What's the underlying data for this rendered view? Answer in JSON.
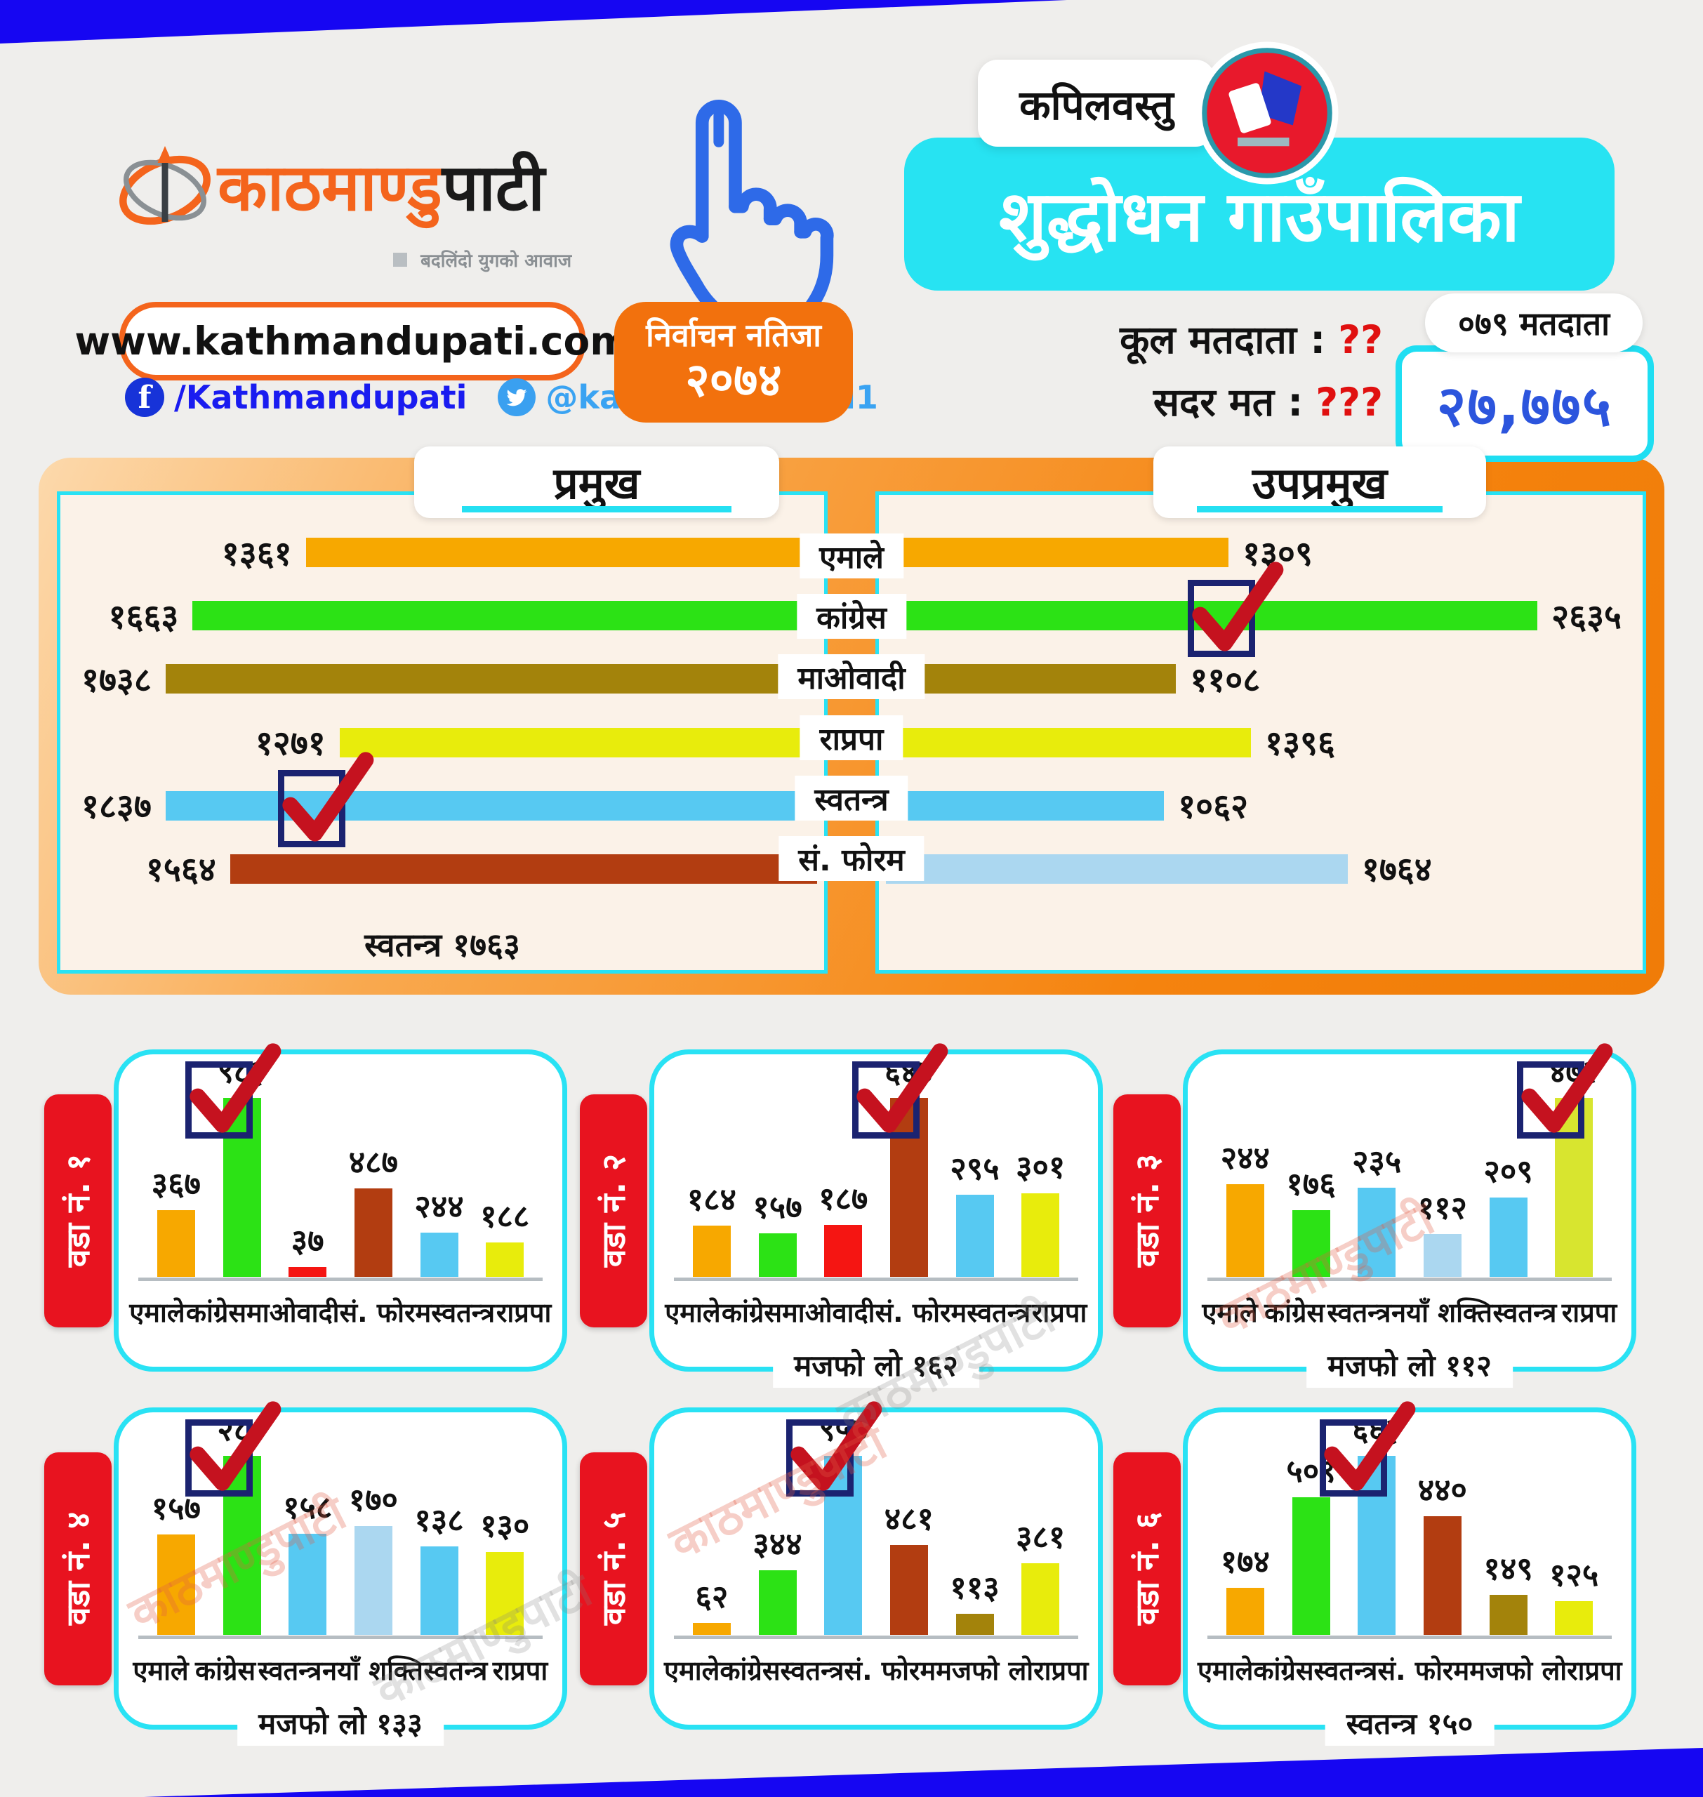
{
  "header": {
    "brand_orange": "काठमाण्डु",
    "brand_black": "पाटी",
    "tagline": "बदलिंदो युगको आवाज",
    "website": "www.kathmandupati.com",
    "facebook_icon": "f",
    "facebook": "/Kathmandupati",
    "twitter": "@kathmandupati1",
    "election_line1": "निर्वाचन नतिजा",
    "election_line2": "२०७४",
    "district": "कपिलवस्तु",
    "municipality": "शुद्धोधन गाउँपालिका",
    "total_voters_label": "कूल मतदाता :",
    "total_voters_value": "??",
    "valid_votes_label": "सदर मत :",
    "valid_votes_value": "???",
    "voters_bubble": "०७९ मतदाता",
    "voters_total": "२७,७७५"
  },
  "watermark": "काठमाण्डुपाटी",
  "colors": {
    "top_bar": "#1606f2",
    "cyan": "#27e3f2",
    "orange_brand": "#f4641c",
    "orange_frame": "#f5830e",
    "red_tab": "#e8131f",
    "check_navy": "#1b2370",
    "check_red": "#c5121f",
    "number_blue": "#2c55dd"
  },
  "chart_data": [
    {
      "id": "chief",
      "type": "bar",
      "orientation": "horizontal",
      "title": "प्रमुख",
      "categories": [
        "एमाले",
        "कांग्रेस",
        "माओवादी",
        "राप्रपा",
        "स्वतन्त्र",
        "सं. फोरम"
      ],
      "values": [
        1361,
        1663,
        1738,
        1271,
        1837,
        1564
      ],
      "value_labels": [
        "१३६१",
        "१६६३",
        "१७३८",
        "१२७१",
        "१८३७",
        "१५६४"
      ],
      "colors": [
        "#f7a800",
        "#2ce215",
        "#a3830b",
        "#e8ec0c",
        "#57c9f2",
        "#b23d11"
      ],
      "winner_index": 4,
      "note": "स्वतन्त्र १७६३"
    },
    {
      "id": "deputy",
      "type": "bar",
      "orientation": "horizontal",
      "title": "उपप्रमुख",
      "categories": [
        "एमाले",
        "कांग्रेस",
        "माओवादी",
        "राप्रपा",
        "स्वतन्त्र",
        "सं. फोरम"
      ],
      "values": [
        1309,
        2635,
        1108,
        1396,
        1062,
        1764
      ],
      "value_labels": [
        "१३०९",
        "२६३५",
        "११०८",
        "१३९६",
        "१०६२",
        "१७६४"
      ],
      "colors": [
        "#f7a800",
        "#2ce215",
        "#a3830b",
        "#e8ec0c",
        "#57c9f2",
        "#abd7f0"
      ],
      "winner_index": 1,
      "note": null
    },
    {
      "id": "ward1",
      "type": "bar",
      "orientation": "vertical",
      "tab": "वडा नं. १",
      "categories": [
        "एमाले",
        "कांग्रेस",
        "माओवादी",
        "सं. फोरम",
        "स्वतन्त्र",
        "राप्रपा"
      ],
      "values": [
        367,
        983,
        37,
        487,
        244,
        188
      ],
      "value_labels": [
        "३६७",
        "९८३",
        "३७",
        "४८७",
        "२४४",
        "१८८"
      ],
      "colors": [
        "#f7a800",
        "#2ce215",
        "#f51512",
        "#b23d11",
        "#57c9f2",
        "#e8ec0c"
      ],
      "winner_index": 1,
      "note": null
    },
    {
      "id": "ward2",
      "type": "bar",
      "orientation": "vertical",
      "tab": "वडा नं. २",
      "categories": [
        "एमाले",
        "कांग्रेस",
        "माओवादी",
        "सं. फोरम",
        "स्वतन्त्र",
        "राप्रपा"
      ],
      "values": [
        184,
        157,
        187,
        644,
        295,
        301
      ],
      "value_labels": [
        "१८४",
        "१५७",
        "१८७",
        "६४४",
        "२९५",
        "३०१"
      ],
      "colors": [
        "#f7a800",
        "#2ce215",
        "#f51512",
        "#b23d11",
        "#57c9f2",
        "#e8ec0c"
      ],
      "winner_index": 3,
      "note": "मजफो लो १६२"
    },
    {
      "id": "ward3",
      "type": "bar",
      "orientation": "vertical",
      "tab": "वडा नं. ३",
      "categories": [
        "एमाले",
        "कांग्रेस",
        "स्वतन्त्र",
        "नयाँ शक्ति",
        "स्वतन्त्र",
        "राप्रपा"
      ],
      "values": [
        244,
        176,
        235,
        112,
        209,
        472
      ],
      "value_labels": [
        "२४४",
        "१७६",
        "२३५",
        "११२",
        "२०९",
        "४७२"
      ],
      "colors": [
        "#f7a800",
        "#2ce215",
        "#57c9f2",
        "#abd7f0",
        "#57c9f2",
        "#d8e52f"
      ],
      "winner_index": 5,
      "note": "मजफो लो ११२"
    },
    {
      "id": "ward4",
      "type": "bar",
      "orientation": "vertical",
      "tab": "वडा नं. ४",
      "categories": [
        "एमाले",
        "कांग्रेस",
        "स्वतन्त्र",
        "नयाँ शक्ति",
        "स्वतन्त्र",
        "राप्रपा"
      ],
      "values": [
        157,
        280,
        158,
        170,
        138,
        130
      ],
      "value_labels": [
        "१५७",
        "२८०",
        "१५८",
        "१७०",
        "१३८",
        "१३०"
      ],
      "colors": [
        "#f7a800",
        "#2ce215",
        "#57c9f2",
        "#abd7f0",
        "#57c9f2",
        "#e8ec0c"
      ],
      "winner_index": 1,
      "note": "मजफो लो १३३"
    },
    {
      "id": "ward5",
      "type": "bar",
      "orientation": "vertical",
      "tab": "वडा नं. ५",
      "categories": [
        "एमाले",
        "कांग्रेस",
        "स्वतन्त्र",
        "सं. फोरम",
        "मजफो लो",
        "राप्रपा"
      ],
      "values": [
        62,
        344,
        957,
        481,
        113,
        381
      ],
      "value_labels": [
        "६२",
        "३४४",
        "९५७",
        "४८१",
        "११३",
        "३८१"
      ],
      "colors": [
        "#f7a800",
        "#2ce215",
        "#57c9f2",
        "#b23d11",
        "#a3830b",
        "#e8ec0c"
      ],
      "winner_index": 2,
      "note": null
    },
    {
      "id": "ward6",
      "type": "bar",
      "orientation": "vertical",
      "tab": "वडा नं. ६",
      "categories": [
        "एमाले",
        "कांग्रेस",
        "स्वतन्त्र",
        "सं. फोरम",
        "मजफो लो",
        "राप्रपा"
      ],
      "values": [
        174,
        509,
        663,
        440,
        149,
        125
      ],
      "value_labels": [
        "१७४",
        "५०९",
        "६६३",
        "४४०",
        "१४९",
        "१२५"
      ],
      "colors": [
        "#f7a800",
        "#2ce215",
        "#57c9f2",
        "#b23d11",
        "#a3830b",
        "#e8ec0c"
      ],
      "winner_index": 2,
      "note": "स्वतन्त्र १५०"
    }
  ]
}
